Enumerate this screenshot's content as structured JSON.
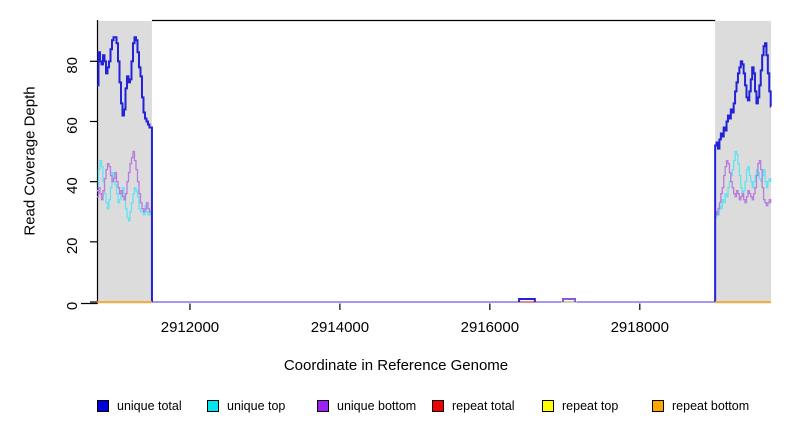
{
  "figure": {
    "xlabel": "Coordinate in Reference Genome",
    "ylabel": "Read Coverage Depth"
  },
  "legend": {
    "items": [
      {
        "label": "unique total",
        "color": "#0000DD"
      },
      {
        "label": "unique top",
        "color": "#00E5EE"
      },
      {
        "label": "unique bottom",
        "color": "#A020F0"
      },
      {
        "label": "repeat total",
        "color": "#EE0000"
      },
      {
        "label": "repeat top",
        "color": "#FFFF00"
      },
      {
        "label": "repeat bottom",
        "color": "#FFA500"
      }
    ]
  },
  "chart_data": {
    "type": "line",
    "title": "",
    "xlabel": "Coordinate in Reference Genome",
    "ylabel": "Read Coverage Depth",
    "xlim": [
      2910760,
      2919750
    ],
    "ylim": [
      0,
      93.4
    ],
    "x_ticks": [
      2912000,
      2914000,
      2916000,
      2918000
    ],
    "y_ticks": [
      0,
      20,
      40,
      60,
      80
    ],
    "grid": false,
    "legend_position": "bottom",
    "shade_color": "#DCDCDC",
    "shaded_regions": [
      {
        "from": 2910760,
        "to": 2911493
      },
      {
        "from": 2919005,
        "to": 2919750
      }
    ],
    "series": [
      {
        "name": "baseline-overlap",
        "color": "#8478F0",
        "width": 1.6,
        "segments": [
          {
            "x0": 2911493,
            "values": [
              0
            ],
            "xend": 2919005
          }
        ]
      },
      {
        "name": "repeat total",
        "color": "#EE6A6A",
        "width": 1.2,
        "segments": [
          {
            "x0": 2916365,
            "values": [
              0
            ],
            "xend": 2916625
          }
        ]
      },
      {
        "name": "repeat top",
        "color": "#D6E287",
        "width": 1.2,
        "segments": [
          {
            "x0": 2916950,
            "values": [
              0
            ],
            "xend": 2917160
          }
        ]
      },
      {
        "name": "unique top",
        "color": "#63E2F0",
        "width": 1.3,
        "segments": [
          {
            "x0": 2910760,
            "dx": 20,
            "values": [
              37,
              44,
              47,
              45,
              40,
              36,
              33,
              31,
              34,
              38,
              43,
              40,
              39,
              36,
              33,
              34,
              36,
              38,
              35,
              31,
              28,
              27,
              30,
              33,
              36,
              38,
              37,
              35,
              31,
              30,
              30,
              29,
              32,
              30,
              29,
              30,
              29
            ],
            "xend": 2911493,
            "end0": true
          },
          {
            "x0": 2919005,
            "dx": 19,
            "values": [
              28,
              30,
              29,
              32,
              31,
              34,
              33,
              36,
              35,
              38,
              40,
              42,
              44,
              47,
              50,
              49,
              46,
              42,
              38,
              35,
              37,
              40,
              44,
              45,
              42,
              40,
              38,
              40,
              42,
              44,
              43,
              41,
              40,
              42,
              44,
              40,
              38,
              40,
              41,
              40
            ],
            "xend": 2919750,
            "start0": true
          }
        ]
      },
      {
        "name": "unique bottom",
        "color": "#B77CDE",
        "width": 1.3,
        "segments": [
          {
            "x0": 2910760,
            "dx": 20,
            "values": [
              35,
              38,
              36,
              34,
              37,
              41,
              44,
              46,
              45,
              42,
              40,
              41,
              43,
              40,
              38,
              36,
              37,
              35,
              34,
              36,
              40,
              43,
              46,
              48,
              50,
              47,
              44,
              40,
              36,
              33,
              31,
              30,
              31,
              33,
              31,
              30,
              30
            ],
            "xend": 2911493,
            "end0": true
          },
          {
            "x0": 2919005,
            "dx": 19,
            "values": [
              30,
              29,
              31,
              33,
              36,
              38,
              42,
              45,
              47,
              46,
              43,
              40,
              38,
              36,
              35,
              37,
              36,
              34,
              35,
              36,
              34,
              33,
              35,
              37,
              36,
              35,
              34,
              36,
              38,
              42,
              46,
              47,
              44,
              38,
              34,
              33,
              32,
              33,
              34,
              33
            ],
            "xend": 2919750,
            "start0": true
          }
        ]
      },
      {
        "name": "unique total",
        "color": "#2222D8",
        "width": 2,
        "segments": [
          {
            "x0": 2910760,
            "dx": 20,
            "values": [
              72,
              83,
              80,
              79,
              82,
              80,
              76,
              78,
              80,
              84,
              87,
              88,
              88,
              86,
              80,
              73,
              66,
              62,
              64,
              71,
              75,
              73,
              74,
              80,
              86,
              88,
              87,
              83,
              78,
              75,
              68,
              63,
              61,
              60,
              59,
              58,
              58
            ],
            "xend": 2911493,
            "end0": true
          },
          {
            "x0": 2916390,
            "values": [
              1
            ],
            "xend": 2916600,
            "start0": true,
            "end0": true
          },
          {
            "x0": 2916975,
            "values": [
              1
            ],
            "xend": 2917135,
            "start0": true,
            "end0": true
          },
          {
            "x0": 2919005,
            "dx": 19,
            "values": [
              52,
              53,
              51,
              54,
              56,
              55,
              58,
              57,
              60,
              62,
              61,
              64,
              63,
              66,
              70,
              73,
              76,
              78,
              80,
              79,
              76,
              72,
              68,
              67,
              70,
              74,
              78,
              76,
              70,
              66,
              68,
              72,
              77,
              82,
              85,
              86,
              82,
              76,
              70,
              65
            ],
            "xend": 2919750,
            "start0": true
          }
        ]
      },
      {
        "name": "unique bottom bump",
        "color": "#B06CD8",
        "width": 1.4,
        "segments": [
          {
            "x0": 2916975,
            "values": [
              1
            ],
            "xend": 2917135,
            "start0": true,
            "end0": true
          }
        ]
      },
      {
        "name": "repeat bottom",
        "color": "#FFA520",
        "width": 1.8,
        "segments": [
          {
            "x0": 2910760,
            "values": [
              0
            ],
            "xend": 2911493
          },
          {
            "x0": 2919005,
            "values": [
              0
            ],
            "xend": 2919750
          }
        ]
      }
    ]
  }
}
